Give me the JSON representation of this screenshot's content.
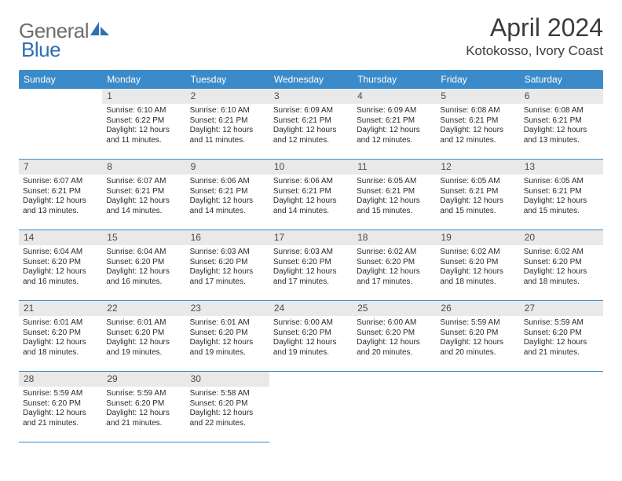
{
  "logo": {
    "text1": "General",
    "text2": "Blue"
  },
  "title": "April 2024",
  "location": "Kotokosso, Ivory Coast",
  "colors": {
    "header_bg": "#3b8bca",
    "header_text": "#ffffff",
    "daynum_bg": "#e9e9e9",
    "row_border": "#3b8bca",
    "logo_gray": "#6d6d6d",
    "logo_blue": "#2f6fb3"
  },
  "daysOfWeek": [
    "Sunday",
    "Monday",
    "Tuesday",
    "Wednesday",
    "Thursday",
    "Friday",
    "Saturday"
  ],
  "weeks": [
    [
      null,
      {
        "n": "1",
        "sunrise": "Sunrise: 6:10 AM",
        "sunset": "Sunset: 6:22 PM",
        "day1": "Daylight: 12 hours",
        "day2": "and 11 minutes."
      },
      {
        "n": "2",
        "sunrise": "Sunrise: 6:10 AM",
        "sunset": "Sunset: 6:21 PM",
        "day1": "Daylight: 12 hours",
        "day2": "and 11 minutes."
      },
      {
        "n": "3",
        "sunrise": "Sunrise: 6:09 AM",
        "sunset": "Sunset: 6:21 PM",
        "day1": "Daylight: 12 hours",
        "day2": "and 12 minutes."
      },
      {
        "n": "4",
        "sunrise": "Sunrise: 6:09 AM",
        "sunset": "Sunset: 6:21 PM",
        "day1": "Daylight: 12 hours",
        "day2": "and 12 minutes."
      },
      {
        "n": "5",
        "sunrise": "Sunrise: 6:08 AM",
        "sunset": "Sunset: 6:21 PM",
        "day1": "Daylight: 12 hours",
        "day2": "and 12 minutes."
      },
      {
        "n": "6",
        "sunrise": "Sunrise: 6:08 AM",
        "sunset": "Sunset: 6:21 PM",
        "day1": "Daylight: 12 hours",
        "day2": "and 13 minutes."
      }
    ],
    [
      {
        "n": "7",
        "sunrise": "Sunrise: 6:07 AM",
        "sunset": "Sunset: 6:21 PM",
        "day1": "Daylight: 12 hours",
        "day2": "and 13 minutes."
      },
      {
        "n": "8",
        "sunrise": "Sunrise: 6:07 AM",
        "sunset": "Sunset: 6:21 PM",
        "day1": "Daylight: 12 hours",
        "day2": "and 14 minutes."
      },
      {
        "n": "9",
        "sunrise": "Sunrise: 6:06 AM",
        "sunset": "Sunset: 6:21 PM",
        "day1": "Daylight: 12 hours",
        "day2": "and 14 minutes."
      },
      {
        "n": "10",
        "sunrise": "Sunrise: 6:06 AM",
        "sunset": "Sunset: 6:21 PM",
        "day1": "Daylight: 12 hours",
        "day2": "and 14 minutes."
      },
      {
        "n": "11",
        "sunrise": "Sunrise: 6:05 AM",
        "sunset": "Sunset: 6:21 PM",
        "day1": "Daylight: 12 hours",
        "day2": "and 15 minutes."
      },
      {
        "n": "12",
        "sunrise": "Sunrise: 6:05 AM",
        "sunset": "Sunset: 6:21 PM",
        "day1": "Daylight: 12 hours",
        "day2": "and 15 minutes."
      },
      {
        "n": "13",
        "sunrise": "Sunrise: 6:05 AM",
        "sunset": "Sunset: 6:21 PM",
        "day1": "Daylight: 12 hours",
        "day2": "and 15 minutes."
      }
    ],
    [
      {
        "n": "14",
        "sunrise": "Sunrise: 6:04 AM",
        "sunset": "Sunset: 6:20 PM",
        "day1": "Daylight: 12 hours",
        "day2": "and 16 minutes."
      },
      {
        "n": "15",
        "sunrise": "Sunrise: 6:04 AM",
        "sunset": "Sunset: 6:20 PM",
        "day1": "Daylight: 12 hours",
        "day2": "and 16 minutes."
      },
      {
        "n": "16",
        "sunrise": "Sunrise: 6:03 AM",
        "sunset": "Sunset: 6:20 PM",
        "day1": "Daylight: 12 hours",
        "day2": "and 17 minutes."
      },
      {
        "n": "17",
        "sunrise": "Sunrise: 6:03 AM",
        "sunset": "Sunset: 6:20 PM",
        "day1": "Daylight: 12 hours",
        "day2": "and 17 minutes."
      },
      {
        "n": "18",
        "sunrise": "Sunrise: 6:02 AM",
        "sunset": "Sunset: 6:20 PM",
        "day1": "Daylight: 12 hours",
        "day2": "and 17 minutes."
      },
      {
        "n": "19",
        "sunrise": "Sunrise: 6:02 AM",
        "sunset": "Sunset: 6:20 PM",
        "day1": "Daylight: 12 hours",
        "day2": "and 18 minutes."
      },
      {
        "n": "20",
        "sunrise": "Sunrise: 6:02 AM",
        "sunset": "Sunset: 6:20 PM",
        "day1": "Daylight: 12 hours",
        "day2": "and 18 minutes."
      }
    ],
    [
      {
        "n": "21",
        "sunrise": "Sunrise: 6:01 AM",
        "sunset": "Sunset: 6:20 PM",
        "day1": "Daylight: 12 hours",
        "day2": "and 18 minutes."
      },
      {
        "n": "22",
        "sunrise": "Sunrise: 6:01 AM",
        "sunset": "Sunset: 6:20 PM",
        "day1": "Daylight: 12 hours",
        "day2": "and 19 minutes."
      },
      {
        "n": "23",
        "sunrise": "Sunrise: 6:01 AM",
        "sunset": "Sunset: 6:20 PM",
        "day1": "Daylight: 12 hours",
        "day2": "and 19 minutes."
      },
      {
        "n": "24",
        "sunrise": "Sunrise: 6:00 AM",
        "sunset": "Sunset: 6:20 PM",
        "day1": "Daylight: 12 hours",
        "day2": "and 19 minutes."
      },
      {
        "n": "25",
        "sunrise": "Sunrise: 6:00 AM",
        "sunset": "Sunset: 6:20 PM",
        "day1": "Daylight: 12 hours",
        "day2": "and 20 minutes."
      },
      {
        "n": "26",
        "sunrise": "Sunrise: 5:59 AM",
        "sunset": "Sunset: 6:20 PM",
        "day1": "Daylight: 12 hours",
        "day2": "and 20 minutes."
      },
      {
        "n": "27",
        "sunrise": "Sunrise: 5:59 AM",
        "sunset": "Sunset: 6:20 PM",
        "day1": "Daylight: 12 hours",
        "day2": "and 21 minutes."
      }
    ],
    [
      {
        "n": "28",
        "sunrise": "Sunrise: 5:59 AM",
        "sunset": "Sunset: 6:20 PM",
        "day1": "Daylight: 12 hours",
        "day2": "and 21 minutes."
      },
      {
        "n": "29",
        "sunrise": "Sunrise: 5:59 AM",
        "sunset": "Sunset: 6:20 PM",
        "day1": "Daylight: 12 hours",
        "day2": "and 21 minutes."
      },
      {
        "n": "30",
        "sunrise": "Sunrise: 5:58 AM",
        "sunset": "Sunset: 6:20 PM",
        "day1": "Daylight: 12 hours",
        "day2": "and 22 minutes."
      },
      null,
      null,
      null,
      null
    ]
  ]
}
